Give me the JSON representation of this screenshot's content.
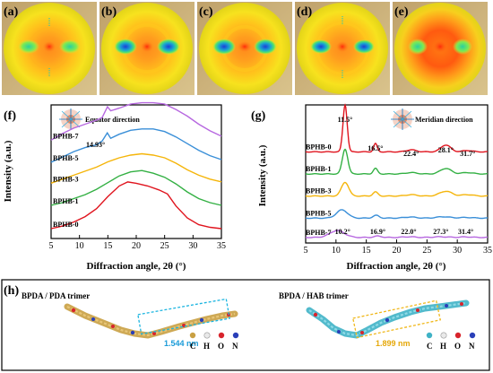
{
  "panels": {
    "a": "(a)",
    "b": "(b)",
    "c": "(c)",
    "d": "(d)",
    "e": "(e)",
    "f": "(f)",
    "g": "(g)",
    "h": "(h)"
  },
  "colors": {
    "BPHB-0": "#e0141e",
    "BPHB-1": "#33b043",
    "BPHB-3": "#f5b50a",
    "BPHB-5": "#3a8fd8",
    "BPHB-7": "#b768e0"
  },
  "chart_data": [
    {
      "type": "line",
      "panel": "f",
      "inset_label": "Equator direction",
      "xlabel": "Diffraction angle, 2θ (°)",
      "ylabel": "Intensity (a.u.)",
      "xlim": [
        5,
        35
      ],
      "xticks": [
        "5",
        "10",
        "15",
        "20",
        "25",
        "30",
        "35"
      ],
      "annotations": [
        "14.93°"
      ],
      "series": [
        {
          "name": "BPHB-7",
          "offset": 0.8,
          "peak": 14.93,
          "x": [
            5,
            7,
            9,
            11,
            13,
            14,
            14.93,
            15.5,
            17,
            19,
            21,
            23,
            25,
            27,
            29,
            31,
            33,
            35
          ],
          "y": [
            0.0,
            0.05,
            0.09,
            0.12,
            0.15,
            0.17,
            0.25,
            0.22,
            0.24,
            0.27,
            0.28,
            0.28,
            0.27,
            0.23,
            0.18,
            0.12,
            0.07,
            0.03
          ]
        },
        {
          "name": "BPHB-5",
          "offset": 0.62,
          "x": [
            5,
            7,
            9,
            11,
            13,
            14,
            14.9,
            15.5,
            17,
            19,
            21,
            23,
            25,
            27,
            29,
            31,
            33,
            35
          ],
          "y": [
            0.0,
            0.04,
            0.08,
            0.11,
            0.13,
            0.16,
            0.22,
            0.18,
            0.21,
            0.24,
            0.25,
            0.25,
            0.23,
            0.19,
            0.14,
            0.09,
            0.05,
            0.02
          ]
        },
        {
          "name": "BPHB-3",
          "offset": 0.45,
          "x": [
            5,
            7,
            9,
            11,
            13,
            15,
            17,
            19,
            21,
            23,
            25,
            27,
            29,
            31,
            33,
            35
          ],
          "y": [
            0.0,
            0.03,
            0.06,
            0.09,
            0.12,
            0.16,
            0.19,
            0.21,
            0.22,
            0.21,
            0.19,
            0.15,
            0.1,
            0.06,
            0.03,
            0.01
          ]
        },
        {
          "name": "BPHB-1",
          "offset": 0.27,
          "x": [
            5,
            7,
            9,
            11,
            13,
            15,
            17,
            19,
            21,
            23,
            25,
            27,
            29,
            31,
            33,
            35
          ],
          "y": [
            0.0,
            0.02,
            0.05,
            0.08,
            0.12,
            0.17,
            0.22,
            0.25,
            0.26,
            0.24,
            0.21,
            0.16,
            0.1,
            0.05,
            0.02,
            0.0
          ]
        },
        {
          "name": "BPHB-0",
          "offset": 0.08,
          "x": [
            5,
            7,
            9,
            11,
            13,
            15,
            17,
            18.5,
            20,
            22,
            24,
            25.5,
            27,
            29,
            31,
            33,
            35
          ],
          "y": [
            0.0,
            0.02,
            0.05,
            0.09,
            0.15,
            0.24,
            0.32,
            0.35,
            0.34,
            0.32,
            0.29,
            0.26,
            0.17,
            0.08,
            0.03,
            0.01,
            0.0
          ]
        }
      ]
    },
    {
      "type": "line",
      "panel": "g",
      "inset_label": "Meridian direction",
      "xlabel": "Diffraction angle, 2θ (°)",
      "ylabel": "Intensity (a.u.)",
      "xlim": [
        5,
        35
      ],
      "xticks": [
        "5",
        "10",
        "15",
        "20",
        "25",
        "30",
        "35"
      ],
      "annotations_top": [
        "11.5°",
        "16.5°",
        "22.4°",
        "28.1°",
        "31.7°"
      ],
      "annotations_bottom": [
        "10.2°",
        "16.9°",
        "22.0°",
        "27.3°",
        "31.4°"
      ],
      "series": [
        {
          "name": "BPHB-0",
          "offset": 0.66,
          "peaks": [
            [
              11.5,
              0.34,
              0.35
            ],
            [
              16.5,
              0.06,
              0.3
            ],
            [
              22.4,
              0.015,
              0.8
            ],
            [
              28.1,
              0.05,
              0.8
            ],
            [
              31.7,
              0.01,
              0.8
            ]
          ]
        },
        {
          "name": "BPHB-1",
          "offset": 0.5,
          "peaks": [
            [
              11.5,
              0.18,
              0.45
            ],
            [
              16.5,
              0.04,
              0.35
            ],
            [
              22.4,
              0.01,
              0.9
            ],
            [
              28.1,
              0.04,
              0.9
            ],
            [
              31.7,
              0.01,
              0.9
            ]
          ]
        },
        {
          "name": "BPHB-3",
          "offset": 0.34,
          "peaks": [
            [
              11.5,
              0.1,
              0.6
            ],
            [
              16.5,
              0.03,
              0.4
            ],
            [
              22.4,
              0.01,
              0.9
            ],
            [
              28.1,
              0.035,
              1.0
            ],
            [
              31.7,
              0.01,
              0.9
            ]
          ]
        },
        {
          "name": "BPHB-5",
          "offset": 0.18,
          "peaks": [
            [
              11.0,
              0.06,
              0.9
            ],
            [
              16.6,
              0.02,
              0.5
            ],
            [
              22.2,
              0.008,
              1.0
            ],
            [
              27.7,
              0.01,
              1.1
            ],
            [
              31.5,
              0.005,
              1.0
            ]
          ]
        },
        {
          "name": "BPHB-7",
          "offset": 0.04,
          "peaks": [
            [
              10.2,
              0.05,
              1.2
            ],
            [
              16.9,
              0.01,
              0.6
            ],
            [
              22.0,
              0.005,
              1.0
            ],
            [
              27.3,
              0.005,
              1.2
            ],
            [
              31.4,
              0.004,
              1.0
            ]
          ]
        }
      ]
    }
  ],
  "panel_h": {
    "left_title": "BPDA / PDA trimer",
    "left_length": "1.544 nm",
    "right_title": "BPDA / HAB trimer",
    "right_length": "1.899 nm",
    "atom_legend": [
      "C",
      "H",
      "O",
      "N"
    ]
  }
}
